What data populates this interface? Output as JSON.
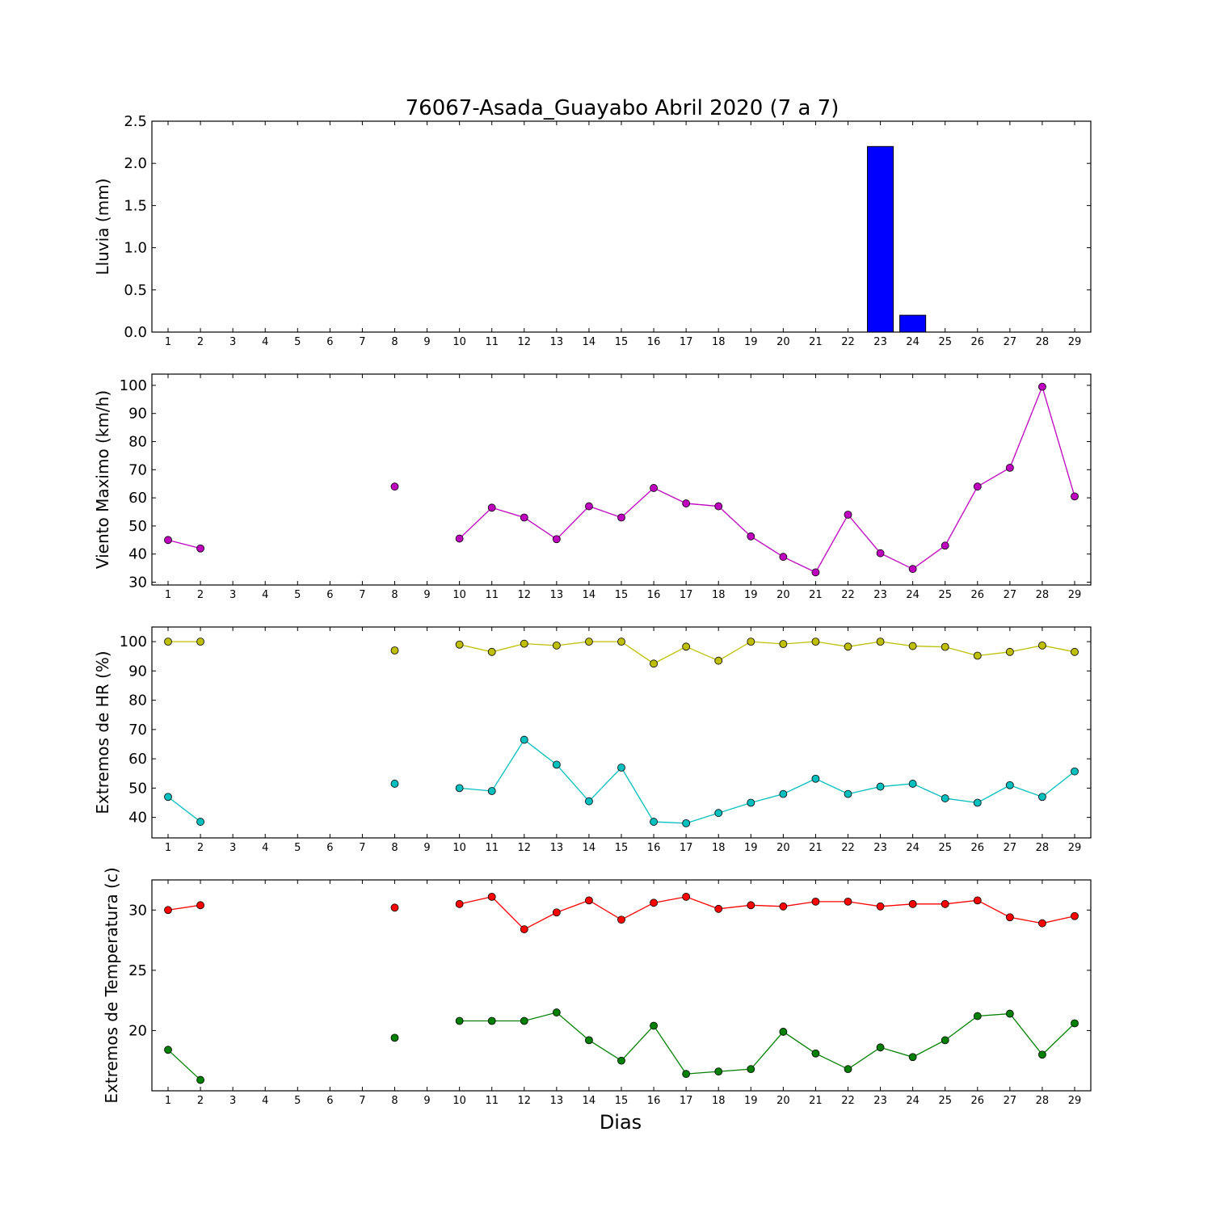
{
  "title": "76067-Asada_Guayabo Abril 2020  (7 a 7)",
  "xlabel": "Dias",
  "chart_data": [
    {
      "type": "bar",
      "ylabel": "Lluvia (mm)",
      "ylim": [
        0,
        2.5
      ],
      "yticks": [
        "0.0",
        "0.5",
        "1.0",
        "1.5",
        "2.0",
        "2.5"
      ],
      "ytick_values": [
        0,
        0.5,
        1.0,
        1.5,
        2.0,
        2.5
      ],
      "x": [
        1,
        2,
        3,
        4,
        5,
        6,
        7,
        8,
        9,
        10,
        11,
        12,
        13,
        14,
        15,
        16,
        17,
        18,
        19,
        20,
        21,
        22,
        23,
        24,
        25,
        26,
        27,
        28,
        29
      ],
      "series": [
        {
          "color": "#0000ff",
          "values": [
            0,
            0,
            0,
            0,
            0,
            0,
            0,
            0,
            0,
            0,
            0,
            0,
            0,
            0,
            0,
            0,
            0,
            0,
            0,
            0,
            0,
            0,
            2.2,
            0.2,
            0,
            0,
            0,
            0,
            0
          ]
        }
      ]
    },
    {
      "type": "line",
      "ylabel": "Viento Maximo (km/h)",
      "ylim": [
        29,
        104
      ],
      "yticks": [
        "30",
        "40",
        "50",
        "60",
        "70",
        "80",
        "90",
        "100"
      ],
      "ytick_values": [
        30,
        40,
        50,
        60,
        70,
        80,
        90,
        100
      ],
      "x": [
        1,
        2,
        3,
        4,
        5,
        6,
        7,
        8,
        9,
        10,
        11,
        12,
        13,
        14,
        15,
        16,
        17,
        18,
        19,
        20,
        21,
        22,
        23,
        24,
        25,
        26,
        27,
        28,
        29
      ],
      "series": [
        {
          "color": "#bf00bf",
          "values": [
            45,
            42,
            null,
            null,
            null,
            null,
            null,
            64,
            null,
            45.5,
            56.5,
            53,
            45.3,
            57,
            53,
            63.5,
            58,
            57,
            46.3,
            39,
            33.5,
            54,
            40.3,
            34.7,
            43,
            64,
            70.7,
            99.5,
            60.5
          ]
        }
      ]
    },
    {
      "type": "line",
      "ylabel": "Extremos de HR (%)",
      "ylim": [
        33,
        105
      ],
      "yticks": [
        "40",
        "50",
        "60",
        "70",
        "80",
        "90",
        "100"
      ],
      "ytick_values": [
        40,
        50,
        60,
        70,
        80,
        90,
        100
      ],
      "x": [
        1,
        2,
        3,
        4,
        5,
        6,
        7,
        8,
        9,
        10,
        11,
        12,
        13,
        14,
        15,
        16,
        17,
        18,
        19,
        20,
        21,
        22,
        23,
        24,
        25,
        26,
        27,
        28,
        29
      ],
      "series": [
        {
          "color": "#bfbf00",
          "values": [
            100,
            100,
            null,
            null,
            null,
            null,
            null,
            97,
            null,
            99,
            96.5,
            99.3,
            98.7,
            100,
            100,
            92.5,
            98.3,
            93.5,
            100,
            99.2,
            100,
            98.3,
            100,
            98.5,
            98.2,
            95.2,
            96.5,
            98.7,
            96.5
          ]
        },
        {
          "color": "#00bfbf",
          "values": [
            47,
            38.5,
            null,
            null,
            null,
            null,
            null,
            51.5,
            null,
            50,
            49,
            66.5,
            58,
            45.5,
            57,
            38.5,
            38,
            41.5,
            45,
            48,
            53.2,
            48,
            50.5,
            51.5,
            46.5,
            45,
            51,
            47,
            55.7
          ]
        }
      ]
    },
    {
      "type": "line",
      "ylabel": "Extremos de Temperatura (c)",
      "ylim": [
        15,
        32.5
      ],
      "yticks": [
        "20",
        "25",
        "30"
      ],
      "ytick_values": [
        20,
        25,
        30
      ],
      "x": [
        1,
        2,
        3,
        4,
        5,
        6,
        7,
        8,
        9,
        10,
        11,
        12,
        13,
        14,
        15,
        16,
        17,
        18,
        19,
        20,
        21,
        22,
        23,
        24,
        25,
        26,
        27,
        28,
        29
      ],
      "series": [
        {
          "color": "#ff0000",
          "values": [
            30,
            30.4,
            null,
            null,
            null,
            null,
            null,
            30.2,
            null,
            30.5,
            31.1,
            28.4,
            29.8,
            30.8,
            29.2,
            30.6,
            31.1,
            30.1,
            30.4,
            30.3,
            30.7,
            30.7,
            30.3,
            30.5,
            30.5,
            30.8,
            29.4,
            28.9,
            29.5
          ]
        },
        {
          "color": "#008000",
          "values": [
            18.4,
            15.9,
            null,
            null,
            null,
            null,
            null,
            19.4,
            null,
            20.8,
            20.8,
            20.8,
            21.5,
            19.2,
            17.5,
            20.4,
            16.4,
            16.6,
            16.8,
            19.9,
            18.1,
            16.8,
            18.6,
            17.8,
            19.2,
            21.2,
            21.4,
            18,
            20.6
          ]
        }
      ]
    }
  ]
}
